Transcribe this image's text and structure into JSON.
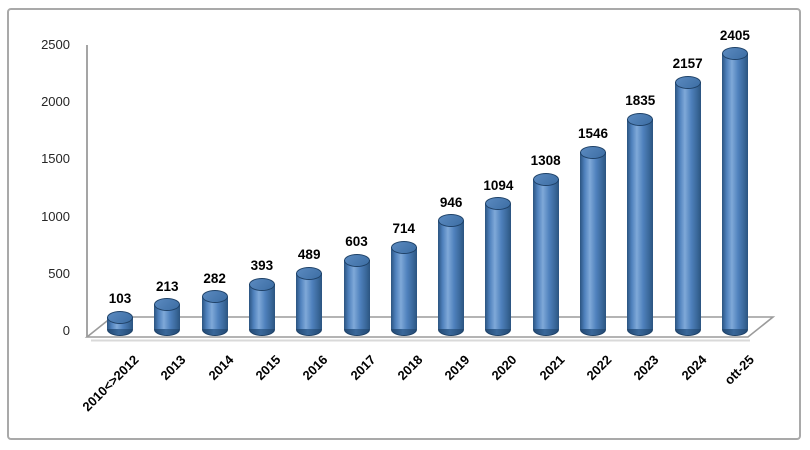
{
  "frame": {
    "background": "#ffffff",
    "border_color": "#a9a9a9"
  },
  "chart_data": {
    "type": "bar",
    "subtype": "3d-cylinder",
    "title": "",
    "xlabel": "",
    "ylabel": "",
    "categories": [
      "2010<>2012",
      "2013",
      "2014",
      "2015",
      "2016",
      "2017",
      "2018",
      "2019",
      "2020",
      "2021",
      "2022",
      "2023",
      "2024",
      "ott-25"
    ],
    "values": [
      103,
      213,
      282,
      393,
      489,
      603,
      714,
      946,
      1094,
      1308,
      1546,
      1835,
      2157,
      2405
    ],
    "ylim": [
      0,
      2500
    ],
    "yticks": [
      0,
      500,
      1000,
      1500,
      2000,
      2500
    ],
    "grid": false,
    "legend": false,
    "data_labels": true,
    "colors": {
      "bar_edge_dark": "#2b5480",
      "bar_mid": "#4f81bd",
      "bar_highlight": "#7fa9d8",
      "bar_top_light": "#5b8ac0",
      "bar_top_dark": "#3c6da3",
      "bar_top_edge": "#1f4268",
      "bar_bottom_dark": "#234a75",
      "axis_line": "#9b9b9b",
      "floor_shadow": "#d9d9d9",
      "tick_label": "#262626",
      "data_label": "#000000",
      "category_label": "#000000"
    }
  }
}
